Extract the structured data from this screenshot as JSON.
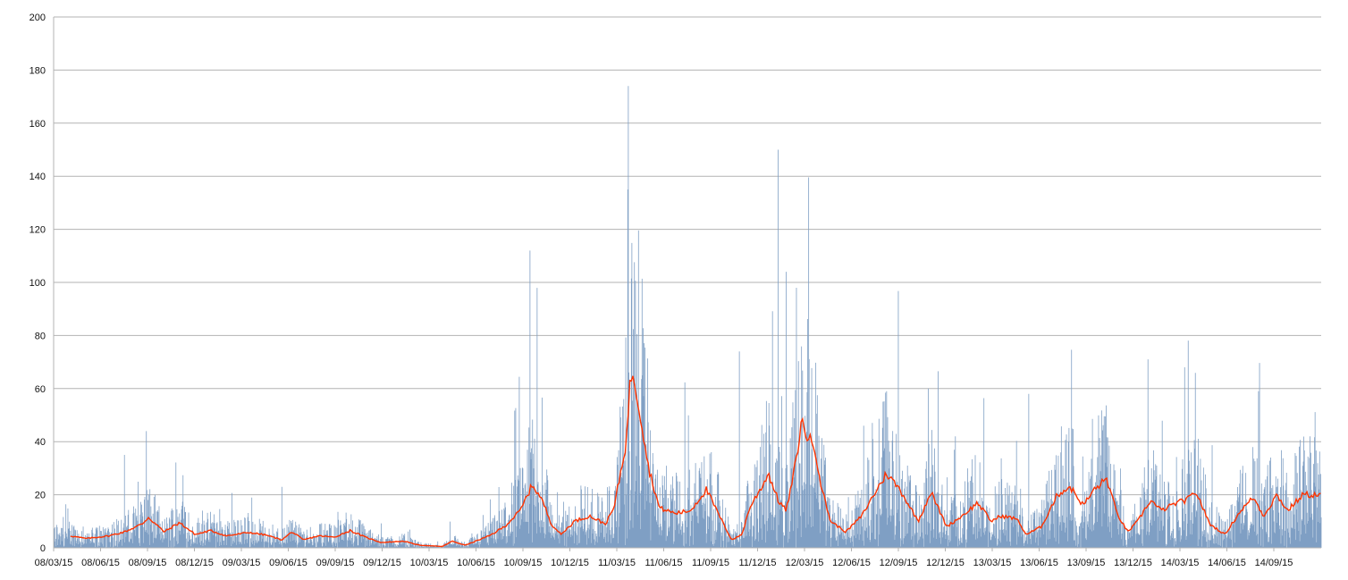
{
  "chart_data": {
    "type": "bar",
    "title": "",
    "xlabel": "",
    "ylabel": "",
    "ylim": [
      0,
      200
    ],
    "y_ticks": [
      "0",
      "20",
      "40",
      "60",
      "80",
      "100",
      "120",
      "140",
      "160",
      "180",
      "200"
    ],
    "x_ticks": [
      "08/03/15",
      "08/06/15",
      "08/09/15",
      "08/12/15",
      "09/03/15",
      "09/06/15",
      "09/09/15",
      "09/12/15",
      "10/03/15",
      "10/06/15",
      "10/09/15",
      "10/12/15",
      "11/03/15",
      "11/06/15",
      "11/09/15",
      "11/12/15",
      "12/03/15",
      "12/06/15",
      "12/09/15",
      "12/12/15",
      "13/03/15",
      "13/06/15",
      "13/09/15",
      "13/12/15",
      "14/03/15",
      "14/06/15",
      "14/09/15"
    ],
    "x_range": [
      "2008-01-28",
      "2014-11-20"
    ],
    "grid": "horizontal",
    "legend": "none",
    "colors": {
      "bars": "#7f9fc4",
      "line": "#ff3300",
      "grid": "#b3b3b3",
      "axis": "#b3b3b3"
    },
    "series": [
      {
        "type": "bar",
        "description": "daily values",
        "approx_peaks": [
          {
            "x": "2008-06-15",
            "y": 35
          },
          {
            "x": "2008-07-28",
            "y": 44
          },
          {
            "x": "2009-04-20",
            "y": 23
          },
          {
            "x": "2010-08-20",
            "y": 112
          },
          {
            "x": "2011-03-01",
            "y": 174
          },
          {
            "x": "2011-02-28",
            "y": 135
          },
          {
            "x": "2011-10-05",
            "y": 74
          },
          {
            "x": "2011-12-20",
            "y": 150
          },
          {
            "x": "2012-01-05",
            "y": 104
          },
          {
            "x": "2012-01-25",
            "y": 98
          },
          {
            "x": "2012-07-20",
            "y": 59
          },
          {
            "x": "2012-10-10",
            "y": 60
          },
          {
            "x": "2013-04-25",
            "y": 58
          },
          {
            "x": "2013-12-15",
            "y": 71
          },
          {
            "x": "2014-02-25",
            "y": 68
          },
          {
            "x": "2014-07-20",
            "y": 59
          }
        ]
      },
      {
        "type": "line",
        "description": "moving average",
        "points": [
          [
            "2008-03-01",
            4.5
          ],
          [
            "2008-04-01",
            3.5
          ],
          [
            "2008-05-15",
            4.5
          ],
          [
            "2008-06-15",
            6
          ],
          [
            "2008-07-20",
            9
          ],
          [
            "2008-08-01",
            11.5
          ],
          [
            "2008-09-01",
            6
          ],
          [
            "2008-10-01",
            9.5
          ],
          [
            "2008-11-01",
            5
          ],
          [
            "2008-12-01",
            6.5
          ],
          [
            "2009-01-01",
            4.5
          ],
          [
            "2009-02-15",
            5.8
          ],
          [
            "2009-03-20",
            4.8
          ],
          [
            "2009-04-20",
            3
          ],
          [
            "2009-05-10",
            6
          ],
          [
            "2009-06-01",
            3
          ],
          [
            "2009-07-01",
            4.5
          ],
          [
            "2009-08-01",
            4
          ],
          [
            "2009-09-01",
            6.5
          ],
          [
            "2009-10-01",
            4
          ],
          [
            "2009-11-01",
            2
          ],
          [
            "2009-12-15",
            2.5
          ],
          [
            "2010-01-15",
            1
          ],
          [
            "2010-03-01",
            0.5
          ],
          [
            "2010-03-20",
            2.5
          ],
          [
            "2010-04-15",
            1
          ],
          [
            "2010-06-01",
            4.5
          ],
          [
            "2010-07-01",
            8
          ],
          [
            "2010-08-01",
            14
          ],
          [
            "2010-08-25",
            24
          ],
          [
            "2010-09-15",
            17
          ],
          [
            "2010-10-01",
            9
          ],
          [
            "2010-10-20",
            5
          ],
          [
            "2010-11-15",
            10
          ],
          [
            "2010-12-15",
            12
          ],
          [
            "2011-01-15",
            9
          ],
          [
            "2011-02-01",
            15
          ],
          [
            "2011-02-25",
            40
          ],
          [
            "2011-03-05",
            63
          ],
          [
            "2011-03-10",
            67
          ],
          [
            "2011-03-25",
            50
          ],
          [
            "2011-04-10",
            30
          ],
          [
            "2011-05-01",
            15
          ],
          [
            "2011-06-01",
            13
          ],
          [
            "2011-07-01",
            14
          ],
          [
            "2011-08-01",
            22
          ],
          [
            "2011-09-01",
            10
          ],
          [
            "2011-09-20",
            3
          ],
          [
            "2011-10-10",
            5
          ],
          [
            "2011-10-25",
            15
          ],
          [
            "2011-11-15",
            22
          ],
          [
            "2011-12-01",
            28
          ],
          [
            "2011-12-20",
            18
          ],
          [
            "2012-01-05",
            14
          ],
          [
            "2012-01-20",
            28
          ],
          [
            "2012-02-05",
            48
          ],
          [
            "2012-02-15",
            42
          ],
          [
            "2012-03-01",
            38
          ],
          [
            "2012-03-15",
            22
          ],
          [
            "2012-04-01",
            10
          ],
          [
            "2012-05-01",
            6
          ],
          [
            "2012-06-01",
            12
          ],
          [
            "2012-07-01",
            22
          ],
          [
            "2012-07-20",
            28
          ],
          [
            "2012-08-15",
            22
          ],
          [
            "2012-09-20",
            10
          ],
          [
            "2012-10-15",
            21
          ],
          [
            "2012-11-15",
            8
          ],
          [
            "2012-12-15",
            12
          ],
          [
            "2013-01-15",
            17
          ],
          [
            "2013-02-10",
            10
          ],
          [
            "2013-03-01",
            12
          ],
          [
            "2013-04-01",
            11
          ],
          [
            "2013-04-20",
            5
          ],
          [
            "2013-05-20",
            8
          ],
          [
            "2013-06-20",
            20
          ],
          [
            "2013-07-15",
            23
          ],
          [
            "2013-08-10",
            16
          ],
          [
            "2013-09-01",
            22
          ],
          [
            "2013-09-25",
            26
          ],
          [
            "2013-10-15",
            13
          ],
          [
            "2013-11-05",
            6
          ],
          [
            "2013-11-25",
            10
          ],
          [
            "2013-12-20",
            18
          ],
          [
            "2014-01-10",
            14
          ],
          [
            "2014-02-10",
            17
          ],
          [
            "2014-03-01",
            18
          ],
          [
            "2014-03-20",
            21
          ],
          [
            "2014-04-15",
            9
          ],
          [
            "2014-05-15",
            5
          ],
          [
            "2014-06-15",
            14
          ],
          [
            "2014-07-10",
            19
          ],
          [
            "2014-07-30",
            12
          ],
          [
            "2014-08-25",
            20
          ],
          [
            "2014-09-15",
            14
          ],
          [
            "2014-10-15",
            20
          ],
          [
            "2014-11-20",
            20
          ]
        ]
      }
    ]
  }
}
